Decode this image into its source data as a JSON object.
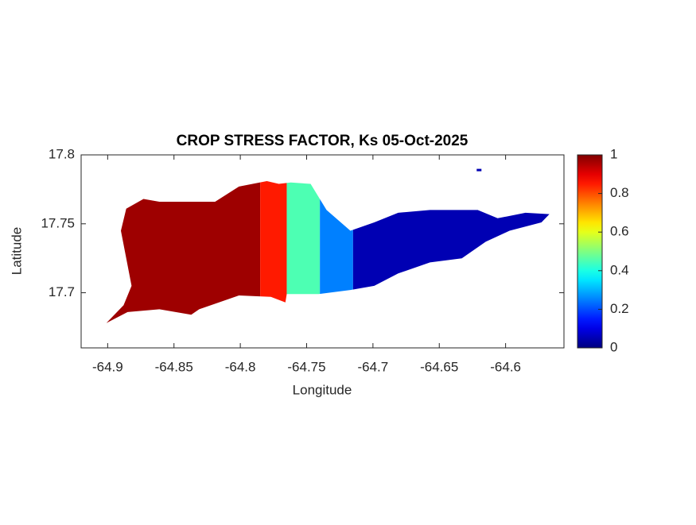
{
  "chart_data": {
    "type": "map",
    "title": "CROP STRESS FACTOR, Ks  05-Oct-2025",
    "x_label": "Longitude",
    "y_label": "Latitude",
    "xlim": [
      -64.92,
      -64.556
    ],
    "ylim": [
      17.66,
      17.8
    ],
    "xticks": [
      -64.9,
      -64.85,
      -64.8,
      -64.75,
      -64.7,
      -64.65,
      -64.6
    ],
    "yticks": [
      17.7,
      17.75,
      17.8
    ],
    "outline": {
      "lon": [
        -64.901,
        -64.888,
        -64.882,
        -64.89,
        -64.886,
        -64.873,
        -64.861,
        -64.819,
        -64.801,
        -64.78,
        -64.771,
        -64.762,
        -64.747,
        -64.735,
        -64.717,
        -64.699,
        -64.681,
        -64.657,
        -64.621,
        -64.606,
        -64.585,
        -64.567,
        -64.573,
        -64.597,
        -64.615,
        -64.633,
        -64.657,
        -64.681,
        -64.699,
        -64.717,
        -64.741,
        -64.765,
        -64.766,
        -64.777,
        -64.801,
        -64.831,
        -64.837,
        -64.861,
        -64.885
      ],
      "lat": [
        17.678,
        17.691,
        17.705,
        17.745,
        17.761,
        17.768,
        17.766,
        17.766,
        17.777,
        17.781,
        17.779,
        17.78,
        17.779,
        17.76,
        17.745,
        17.751,
        17.758,
        17.76,
        17.76,
        17.754,
        17.758,
        17.757,
        17.751,
        17.745,
        17.737,
        17.725,
        17.722,
        17.714,
        17.705,
        17.702,
        17.699,
        17.699,
        17.693,
        17.697,
        17.698,
        17.688,
        17.684,
        17.688,
        17.686
      ]
    },
    "zones": [
      {
        "lon": [
          -64.91,
          -64.785
        ],
        "value": 0.97
      },
      {
        "lon": [
          -64.785,
          -64.765
        ],
        "value": 0.85
      },
      {
        "lon": [
          -64.765,
          -64.74
        ],
        "value": 0.45
      },
      {
        "lon": [
          -64.74,
          -64.715
        ],
        "value": 0.25
      },
      {
        "lon": [
          -64.715,
          -64.56
        ],
        "value": 0.05
      }
    ],
    "points": [
      {
        "lon": -64.62,
        "lat": 17.789,
        "value": 0.05
      }
    ],
    "colormap": "jet",
    "clim": [
      0,
      1
    ],
    "colorbar_ticks": [
      0,
      0.2,
      0.4,
      0.6,
      0.8,
      1
    ]
  }
}
